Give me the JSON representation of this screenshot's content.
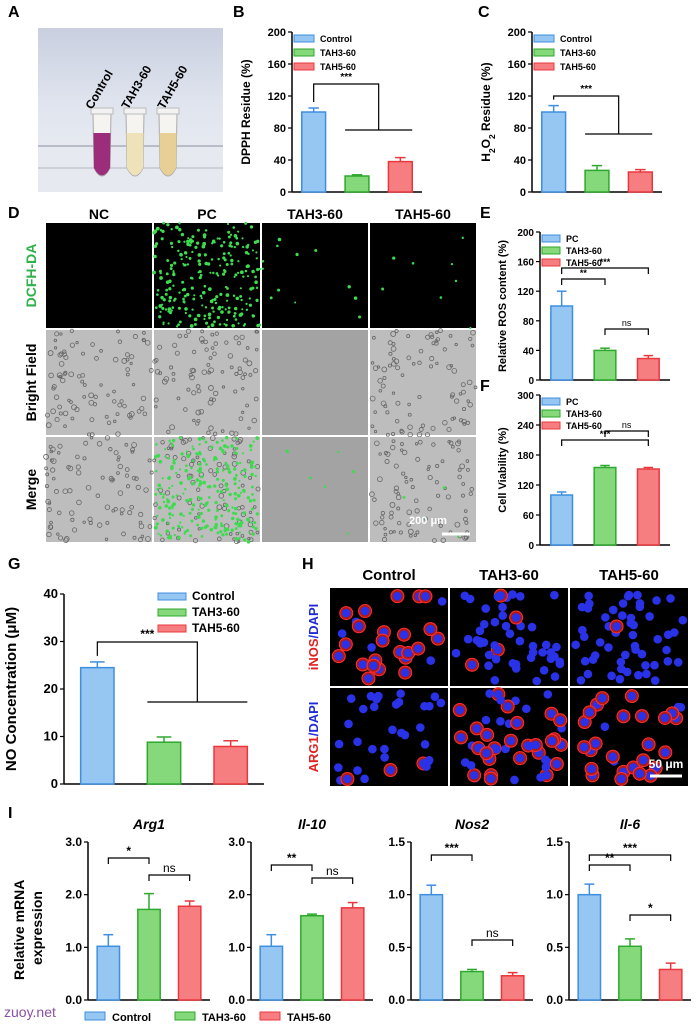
{
  "panels": {
    "A": {
      "label": "A",
      "tubes": [
        "Control",
        "TAH3-60",
        "TAH5-60"
      ],
      "colors": [
        "#9b2d7a",
        "#f0e2b8",
        "#e8cf95"
      ]
    },
    "B": {
      "label": "B"
    },
    "C": {
      "label": "C"
    },
    "D": {
      "label": "D",
      "columns": [
        "NC",
        "PC",
        "TAH3-60",
        "TAH5-60"
      ],
      "rows": [
        "DCFH-DA",
        "Bright Field",
        "Merge"
      ],
      "scale": "200 μm"
    },
    "E": {
      "label": "E"
    },
    "F": {
      "label": "F"
    },
    "G": {
      "label": "G"
    },
    "H": {
      "label": "H",
      "columns": [
        "Control",
        "TAH3-60",
        "TAH5-60"
      ],
      "row1": {
        "a": "iNOS",
        "b": "/DAPI"
      },
      "row2": {
        "a": "ARG1",
        "b": "/DAPI"
      },
      "scale": "50 μm"
    },
    "I": {
      "label": "I",
      "ylabel": [
        "Relative mRNA",
        "expression"
      ],
      "legend": [
        "Control",
        "TAH3-60",
        "TAH5-60"
      ]
    }
  },
  "colors": {
    "blue": "#96c6f2",
    "green": "#86d97b",
    "red": "#f77e80",
    "blueEdge": "#3f8fe0",
    "greenEdge": "#2ea82e",
    "redEdge": "#e8383d"
  },
  "watermark": "zuoy.net",
  "chart_data": [
    {
      "id": "B",
      "type": "bar",
      "categories": [
        "Control",
        "TAH3-60",
        "TAH5-60"
      ],
      "values": [
        100,
        20,
        38
      ],
      "errors": [
        5,
        1.5,
        5
      ],
      "ylabel": "DPPH Residue (%)",
      "ylim": [
        0,
        200
      ],
      "yticks": [
        0,
        40,
        80,
        120,
        160,
        200
      ],
      "legend": [
        "Control",
        "TAH3-60",
        "TAH5-60"
      ],
      "legend_pos": "top-left",
      "sig": [
        {
          "from": 0,
          "to": [
            1,
            2
          ],
          "text": "***"
        }
      ]
    },
    {
      "id": "C",
      "type": "bar",
      "categories": [
        "Control",
        "TAH3-60",
        "TAH5-60"
      ],
      "values": [
        100,
        27,
        25
      ],
      "errors": [
        8,
        6,
        3
      ],
      "ylabel": [
        "H",
        "2",
        "O",
        "2",
        " Residue (%)"
      ],
      "ylim": [
        0,
        200
      ],
      "yticks": [
        0,
        40,
        80,
        120,
        160,
        200
      ],
      "legend": [
        "Control",
        "TAH3-60",
        "TAH5-60"
      ],
      "legend_pos": "top-left",
      "sig": [
        {
          "from": 0,
          "to": [
            1,
            2
          ],
          "text": "***"
        }
      ]
    },
    {
      "id": "E",
      "type": "bar",
      "categories": [
        "PC",
        "TAH3-60",
        "TAH5-60"
      ],
      "values": [
        100,
        40,
        29
      ],
      "errors": [
        20,
        3,
        4
      ],
      "ylabel": "Relative ROS content (%)",
      "ylim": [
        0,
        200
      ],
      "yticks": [
        0,
        40,
        80,
        120,
        160,
        200
      ],
      "legend": [
        "PC",
        "TAH3-60",
        "TAH5-60"
      ],
      "legend_pos": "top-left",
      "sig": [
        {
          "a": 0,
          "b": 1,
          "text": "**"
        },
        {
          "a": 0,
          "b": 2,
          "text": "***"
        },
        {
          "a": 1,
          "b": 2,
          "text": "ns"
        }
      ]
    },
    {
      "id": "F",
      "type": "bar",
      "categories": [
        "PC",
        "TAH3-60",
        "TAH5-60"
      ],
      "values": [
        100,
        155,
        152
      ],
      "errors": [
        6,
        4,
        3
      ],
      "ylabel": "Cell Viability (%)",
      "ylim": [
        0,
        300
      ],
      "yticks": [
        0,
        60,
        120,
        180,
        240,
        300
      ],
      "legend": [
        "PC",
        "TAH3-60",
        "TAH5-60"
      ],
      "legend_pos": "top-left",
      "sig": [
        {
          "a": 0,
          "b": 2,
          "text": "***"
        },
        {
          "a": 1,
          "b": 2,
          "text": "ns"
        }
      ]
    },
    {
      "id": "G",
      "type": "bar",
      "categories": [
        "Control",
        "TAH3-60",
        "TAH5-60"
      ],
      "values": [
        24.5,
        8.8,
        7.9
      ],
      "errors": [
        1.2,
        1.1,
        1.2
      ],
      "ylabel": "NO Concentration (μM)",
      "ylim": [
        0,
        40
      ],
      "yticks": [
        0,
        10,
        20,
        30,
        40
      ],
      "legend": [
        "Control",
        "TAH3-60",
        "TAH5-60"
      ],
      "legend_pos": "top-right",
      "sig": [
        {
          "from": 0,
          "to": [
            1,
            2
          ],
          "text": "***"
        }
      ]
    },
    {
      "id": "I1",
      "type": "bar",
      "title": "Arg1",
      "categories": [
        "Control",
        "TAH3-60",
        "TAH5-60"
      ],
      "values": [
        1.02,
        1.72,
        1.78
      ],
      "errors": [
        0.22,
        0.3,
        0.1
      ],
      "ylim": [
        0,
        3
      ],
      "yticks": [
        "0.0",
        "1.0",
        "2.0",
        "3.0"
      ],
      "sig": [
        {
          "a": 0,
          "b": 1,
          "text": "*"
        },
        {
          "a": 1,
          "b": 2,
          "text": "ns"
        }
      ]
    },
    {
      "id": "I2",
      "type": "bar",
      "title": "Il-10",
      "categories": [
        "Control",
        "TAH3-60",
        "TAH5-60"
      ],
      "values": [
        1.02,
        1.6,
        1.75
      ],
      "errors": [
        0.22,
        0.03,
        0.1
      ],
      "ylim": [
        0,
        3
      ],
      "yticks": [
        "0.0",
        "1.0",
        "2.0",
        "3.0"
      ],
      "sig": [
        {
          "a": 0,
          "b": 1,
          "text": "**"
        },
        {
          "a": 1,
          "b": 2,
          "text": "ns"
        }
      ]
    },
    {
      "id": "I3",
      "type": "bar",
      "title": "Nos2",
      "categories": [
        "Control",
        "TAH3-60",
        "TAH5-60"
      ],
      "values": [
        1.0,
        0.27,
        0.23
      ],
      "errors": [
        0.09,
        0.02,
        0.03
      ],
      "ylim": [
        0,
        1.5
      ],
      "yticks": [
        "0.0",
        "0.5",
        "1.0",
        "1.5"
      ],
      "sig": [
        {
          "a": 0,
          "b": 1,
          "text": "***"
        },
        {
          "a": 1,
          "b": 2,
          "text": "ns"
        }
      ]
    },
    {
      "id": "I4",
      "type": "bar",
      "title": "Il-6",
      "categories": [
        "Control",
        "TAH3-60",
        "TAH5-60"
      ],
      "values": [
        1.0,
        0.51,
        0.29
      ],
      "errors": [
        0.1,
        0.07,
        0.06
      ],
      "ylim": [
        0,
        1.5
      ],
      "yticks": [
        "0.0",
        "0.5",
        "1.0",
        "1.5"
      ],
      "sig": [
        {
          "a": 0,
          "b": 1,
          "text": "**"
        },
        {
          "a": 0,
          "b": 2,
          "text": "***"
        },
        {
          "a": 1,
          "b": 2,
          "text": "*"
        }
      ]
    }
  ]
}
